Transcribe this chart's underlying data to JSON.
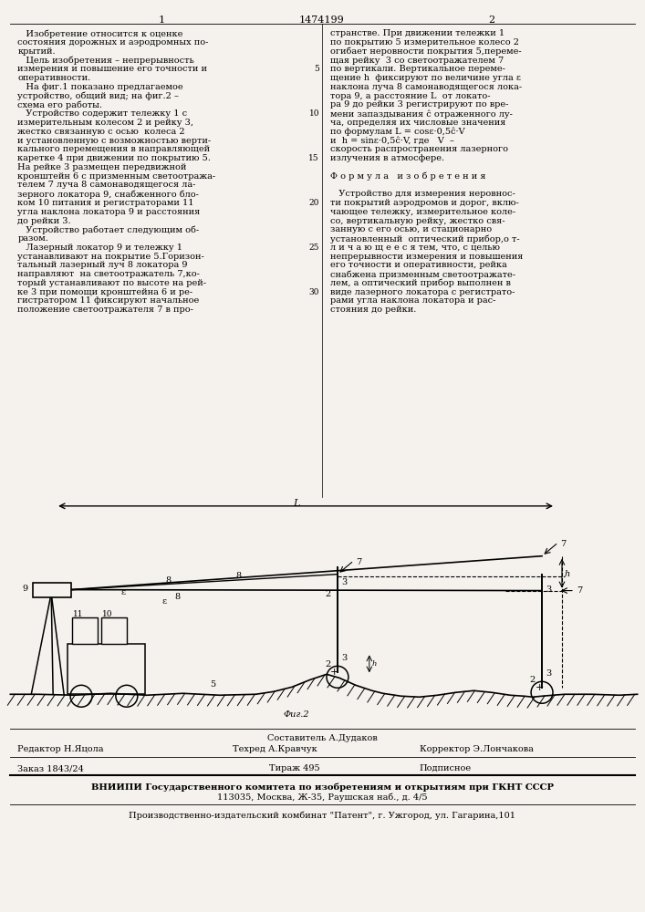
{
  "page_width": 7.07,
  "page_height": 10.0,
  "bg_color": "#f5f2ee",
  "patent_number": "1474199",
  "col1_header": "1",
  "col2_header": "2",
  "text_col1": [
    "   Изобретение относится к оценке",
    "состояния дорожных и аэродромных по-",
    "крытий.",
    "   Цель изобретения – непрерывность",
    "измерения и повышение его точности и",
    "оперативности.",
    "   На фиг.1 показано предлагаемое",
    "устройство, общий вид; на фиг.2 –",
    "схема его работы.",
    "   Устройство содержит тележку 1 с",
    "измерительным колесом 2 и рейку 3,",
    "жестко связанную с осью  колеса 2",
    "и установленную с возможностью верти-",
    "кального перемещения в направляющей",
    "каретке 4 при движении по покрытию 5.",
    "На рейке 3 размещен передвижной",
    "кронштейн 6 с призменным светоотража-",
    "телем 7 луча 8 самонаводящегося ла-",
    "зерного локатора 9, снабженного бло-",
    "ком 10 питания и регистраторами 11",
    "угла наклона локатора 9 и расстояния",
    "до рейки 3.",
    "   Устройство работает следующим об-",
    "разом.",
    "   Лазерный локатор 9 и тележку 1",
    "устанавливают на покрытие 5.Горизон-",
    "тальный лазерный луч 8 локатора 9",
    "направляют  на светоотражатель 7,ко-",
    "торый устанавливают по высоте на рей-",
    "ке 3 при помощи кронштейна 6 и ре-",
    "гистратором 11 фиксируют начальное",
    "положение светоотражателя 7 в про-"
  ],
  "text_col2": [
    "странстве. При движении тележки 1",
    "по покрытию 5 измерительное колесо 2",
    "огибает неровности покрытия 5,переме-",
    "щая рейку  3 со светоотражателем 7",
    "по вертикали. Вертикальное переме-",
    "щение h  фиксируют по величине угла ε",
    "наклона луча 8 самонаводящегося лока-",
    "тора 9, а расстояние L  от локато-",
    "ра 9 до рейки 3 регистрируют по вре-",
    "мени запаздывания ĉ отраженного лу-",
    "ча, определяя их числовые значения",
    "по формулам L = cosε·0,5ĉ·V",
    "и  h = sinε·0,5ĉ·V, где   V  –",
    "скорость распространения лазерного",
    "излучения в атмосфере.",
    "",
    "Ф о р м у л а   и з о б р е т е н и я",
    "",
    "   Устройство для измерения неровнос-",
    "ти покрытий аэродромов и дорог, вклю-",
    "чающее тележку, измерительное коле-",
    "со, вертикальную рейку, жестко свя-",
    "занную с его осью, и стационарно",
    "установленный  оптический прибор,о т-",
    "л и ч а ю щ е е с я тем, что, с целью",
    "непрерывности измерения и повышения",
    "его точности и оперативности, рейка",
    "снабжена призменным светоотражате-",
    "лем, а оптический прибор выполнен в",
    "виде лазерного локатора с регистрато-",
    "рами угла наклона локатора и рас-",
    "стояния до рейки."
  ],
  "footer_composer": "Составитель А.Дудаков",
  "footer_editor": "Редактор Н.Яцола",
  "footer_techred": "Техред А.Кравчук",
  "footer_corrector": "Корректор Э.Лончакова",
  "footer_order": "Заказ 1843/24",
  "footer_tirazh": "Тираж 495",
  "footer_podpisnoe": "Подписное",
  "footer_vniipи": "ВНИИПИ Государственного комитета по изобретениям и открытиям при ГКНТ СССР",
  "footer_address": "113035, Москва, Ж-35, Раушская наб., д. 4/5",
  "footer_proizv": "Производственно-издательский комбинат \"Патент\", г. Ужгород, ул. Гагарина,101"
}
